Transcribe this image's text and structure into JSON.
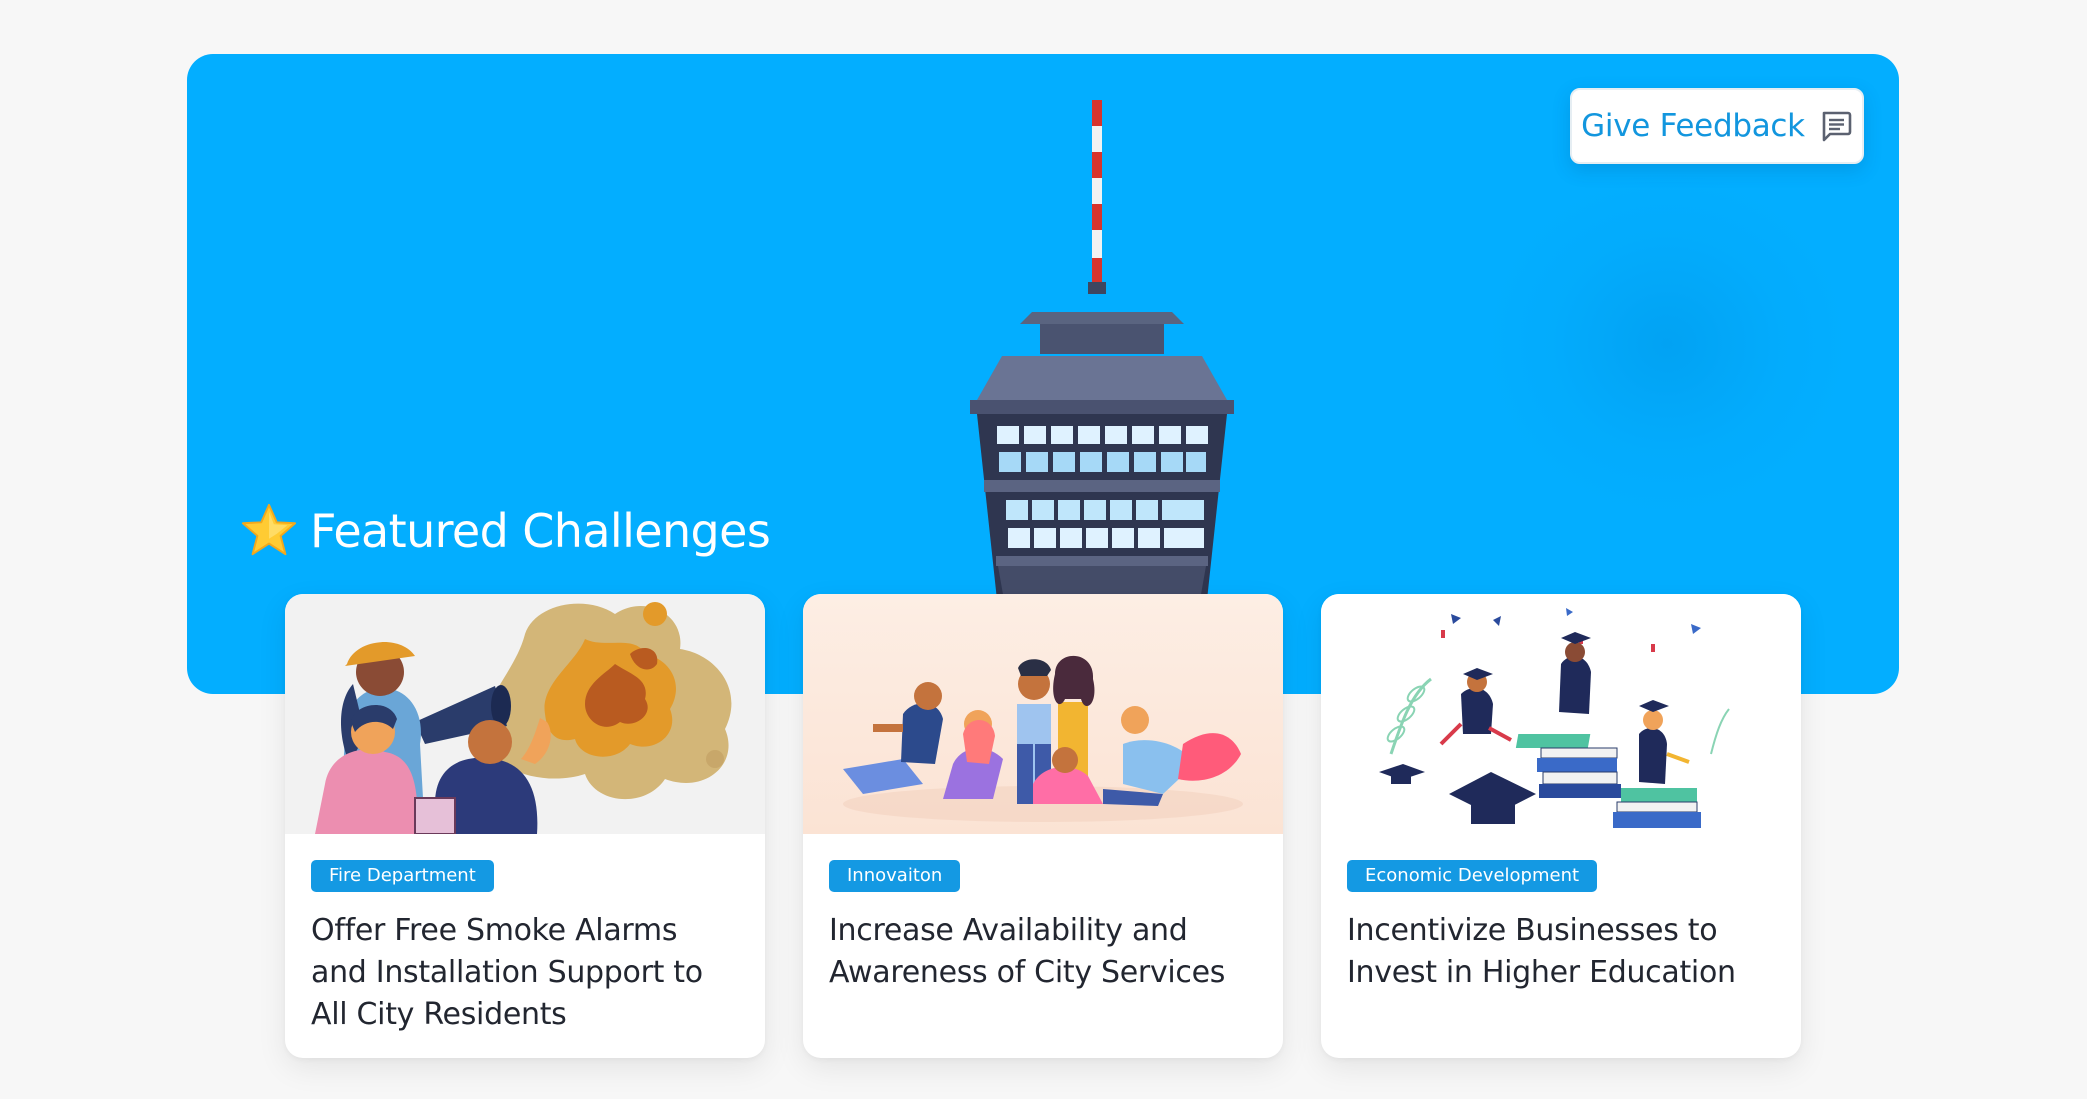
{
  "hero": {
    "feedback_button": {
      "label": "Give Feedback",
      "icon": "chat-message-icon"
    },
    "section_title": "Featured Challenges",
    "section_icon": "star-icon",
    "illustration": "observation-tower-icon",
    "colors": {
      "background": "#03aeff",
      "accent": "#1296de"
    }
  },
  "challenges": [
    {
      "tag": "Fire Department",
      "title": "Offer Free Smoke Alarms and Installation Support to All City Residents",
      "illustration": "firefighters-illustration"
    },
    {
      "tag": "Innovaiton",
      "title": "Increase Availability and Awareness of City Services",
      "illustration": "community-group-illustration"
    },
    {
      "tag": "Economic Development",
      "title": "Incentivize Businesses to Invest in Higher Education",
      "illustration": "graduation-illustration"
    }
  ]
}
